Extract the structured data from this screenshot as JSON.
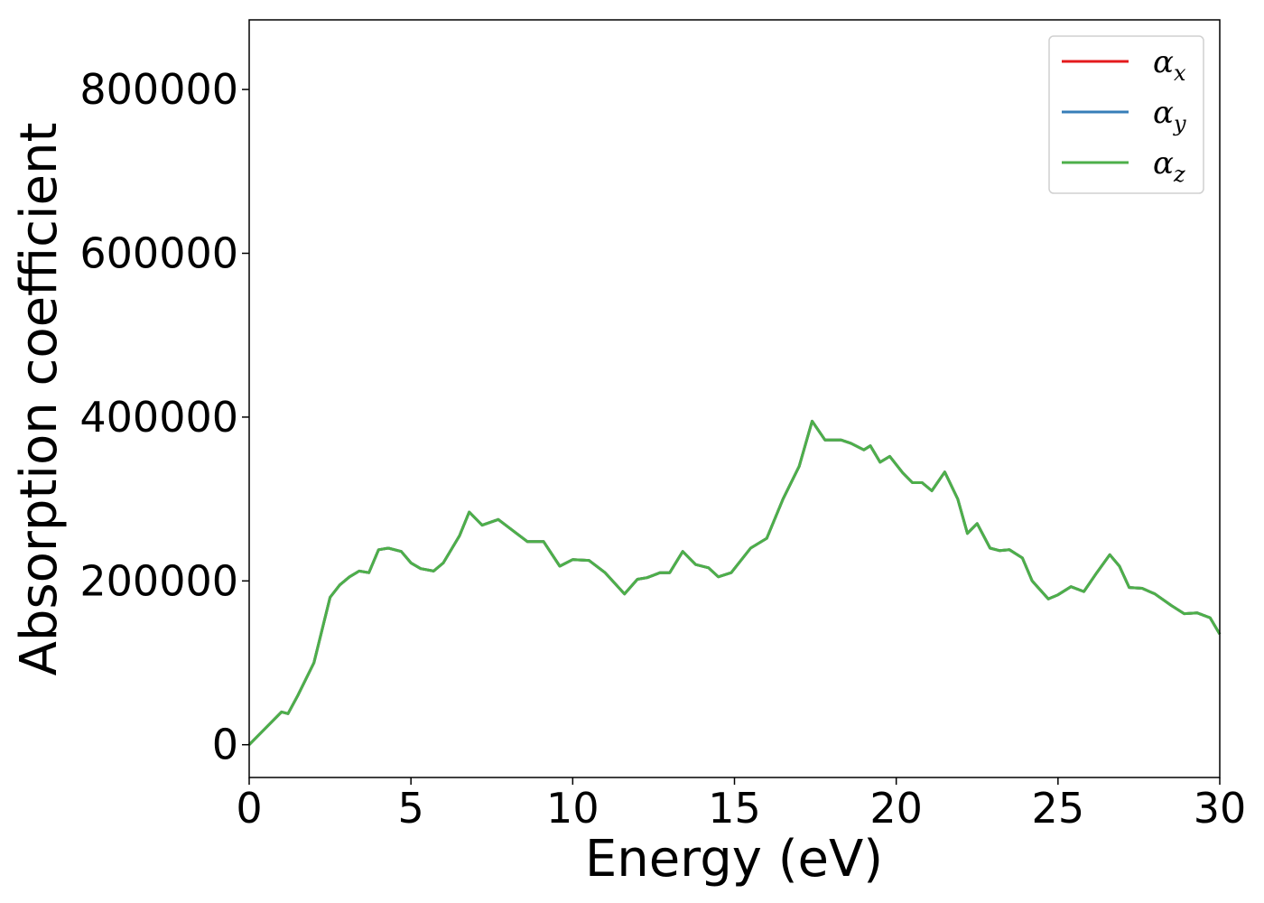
{
  "chart_data": {
    "type": "line",
    "xlabel": "Energy (eV)",
    "ylabel": "Absorption coefficient",
    "xlim": [
      0,
      30
    ],
    "ylim": [
      -40000,
      885000
    ],
    "x_ticks": [
      0,
      5,
      10,
      15,
      20,
      25,
      30
    ],
    "x_tick_labels": [
      "0",
      "5",
      "10",
      "15",
      "20",
      "25",
      "30"
    ],
    "y_ticks": [
      0,
      200000,
      400000,
      600000,
      800000
    ],
    "y_tick_labels": [
      "0",
      "200000",
      "400000",
      "600000",
      "800000"
    ],
    "grid": false,
    "legend_position": "top-right",
    "x": [
      0,
      0.5,
      1.0,
      1.2,
      1.5,
      2.0,
      2.5,
      2.8,
      3.1,
      3.4,
      3.7,
      4.0,
      4.3,
      4.7,
      5.0,
      5.3,
      5.7,
      6.0,
      6.5,
      6.8,
      7.2,
      7.7,
      8.2,
      8.6,
      9.1,
      9.6,
      10.0,
      10.5,
      11.0,
      11.6,
      12.0,
      12.3,
      12.7,
      13.0,
      13.4,
      13.8,
      14.2,
      14.5,
      14.9,
      15.5,
      16.0,
      16.5,
      17.0,
      17.4,
      17.8,
      18.0,
      18.3,
      18.6,
      19.0,
      19.2,
      19.5,
      19.8,
      20.2,
      20.5,
      20.8,
      21.1,
      21.5,
      21.9,
      22.2,
      22.5,
      22.9,
      23.2,
      23.5,
      23.9,
      24.2,
      24.7,
      25.0,
      25.4,
      25.8,
      26.2,
      26.6,
      26.9,
      27.2,
      27.6,
      28.0,
      28.5,
      28.9,
      29.3,
      29.7,
      30.0
    ],
    "series": [
      {
        "name": "α_x",
        "color": "#e41a1c",
        "values": [
          0,
          20000,
          40000,
          38000,
          60000,
          100000,
          180000,
          195000,
          205000,
          212000,
          210000,
          238000,
          240000,
          236000,
          222000,
          215000,
          212000,
          222000,
          255000,
          284000,
          268000,
          275000,
          260000,
          248000,
          248000,
          218000,
          226000,
          225000,
          210000,
          184000,
          202000,
          204000,
          210000,
          210000,
          236000,
          220000,
          216000,
          205000,
          210000,
          240000,
          252000,
          300000,
          340000,
          395000,
          372000,
          372000,
          372000,
          368000,
          360000,
          365000,
          345000,
          352000,
          332000,
          320000,
          320000,
          310000,
          333000,
          300000,
          258000,
          270000,
          240000,
          237000,
          238000,
          228000,
          200000,
          178000,
          183000,
          193000,
          187000,
          210000,
          232000,
          218000,
          192000,
          191000,
          184000,
          170000,
          160000,
          161000,
          155000,
          135000
        ]
      },
      {
        "name": "α_y",
        "color": "#377eb8",
        "values": [
          0,
          20000,
          40000,
          38000,
          60000,
          100000,
          180000,
          195000,
          205000,
          212000,
          210000,
          238000,
          240000,
          236000,
          222000,
          215000,
          212000,
          222000,
          255000,
          284000,
          268000,
          275000,
          260000,
          248000,
          248000,
          218000,
          226000,
          225000,
          210000,
          184000,
          202000,
          204000,
          210000,
          210000,
          236000,
          220000,
          216000,
          205000,
          210000,
          240000,
          252000,
          300000,
          340000,
          395000,
          372000,
          372000,
          372000,
          368000,
          360000,
          365000,
          345000,
          352000,
          332000,
          320000,
          320000,
          310000,
          333000,
          300000,
          258000,
          270000,
          240000,
          237000,
          238000,
          228000,
          200000,
          178000,
          183000,
          193000,
          187000,
          210000,
          232000,
          218000,
          192000,
          191000,
          184000,
          170000,
          160000,
          161000,
          155000,
          135000
        ]
      },
      {
        "name": "α_z",
        "color": "#4daf4a",
        "values": [
          0,
          20000,
          40000,
          38000,
          60000,
          100000,
          180000,
          195000,
          205000,
          212000,
          210000,
          238000,
          240000,
          236000,
          222000,
          215000,
          212000,
          222000,
          255000,
          284000,
          268000,
          275000,
          260000,
          248000,
          248000,
          218000,
          226000,
          225000,
          210000,
          184000,
          202000,
          204000,
          210000,
          210000,
          236000,
          220000,
          216000,
          205000,
          210000,
          240000,
          252000,
          300000,
          340000,
          395000,
          372000,
          372000,
          372000,
          368000,
          360000,
          365000,
          345000,
          352000,
          332000,
          320000,
          320000,
          310000,
          333000,
          300000,
          258000,
          270000,
          240000,
          237000,
          238000,
          228000,
          200000,
          178000,
          183000,
          193000,
          187000,
          210000,
          232000,
          218000,
          192000,
          191000,
          184000,
          170000,
          160000,
          161000,
          155000,
          135000
        ]
      }
    ],
    "legend": [
      {
        "symbol": "α",
        "sub": "x"
      },
      {
        "symbol": "α",
        "sub": "y"
      },
      {
        "symbol": "α",
        "sub": "z"
      }
    ]
  }
}
